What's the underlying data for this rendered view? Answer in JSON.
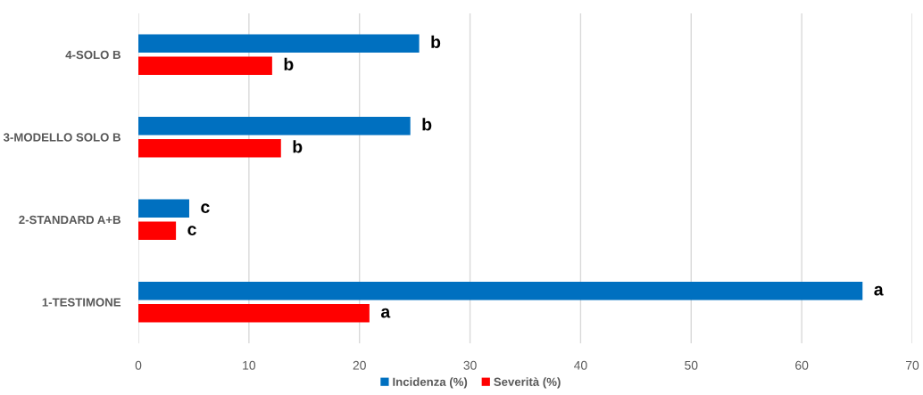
{
  "chart_data": {
    "type": "bar",
    "orientation": "horizontal",
    "categories": [
      "4-SOLO B",
      "3-MODELLO SOLO B",
      "2-STANDARD A+B",
      "1-TESTIMONE"
    ],
    "series": [
      {
        "name": "Incidenza (%)",
        "color": "#0070c0",
        "values": [
          25.4,
          24.6,
          4.6,
          65.5
        ],
        "value_labels": [
          "b",
          "b",
          "c",
          "a"
        ]
      },
      {
        "name": "Severità (%)",
        "color": "#ff0000",
        "values": [
          12.1,
          12.9,
          3.4,
          20.9
        ],
        "value_labels": [
          "b",
          "b",
          "c",
          "a"
        ]
      }
    ],
    "xlim": [
      0,
      70
    ],
    "xticks": [
      0,
      10,
      20,
      30,
      40,
      50,
      60,
      70
    ],
    "grid": "x",
    "legend": "bottom"
  }
}
